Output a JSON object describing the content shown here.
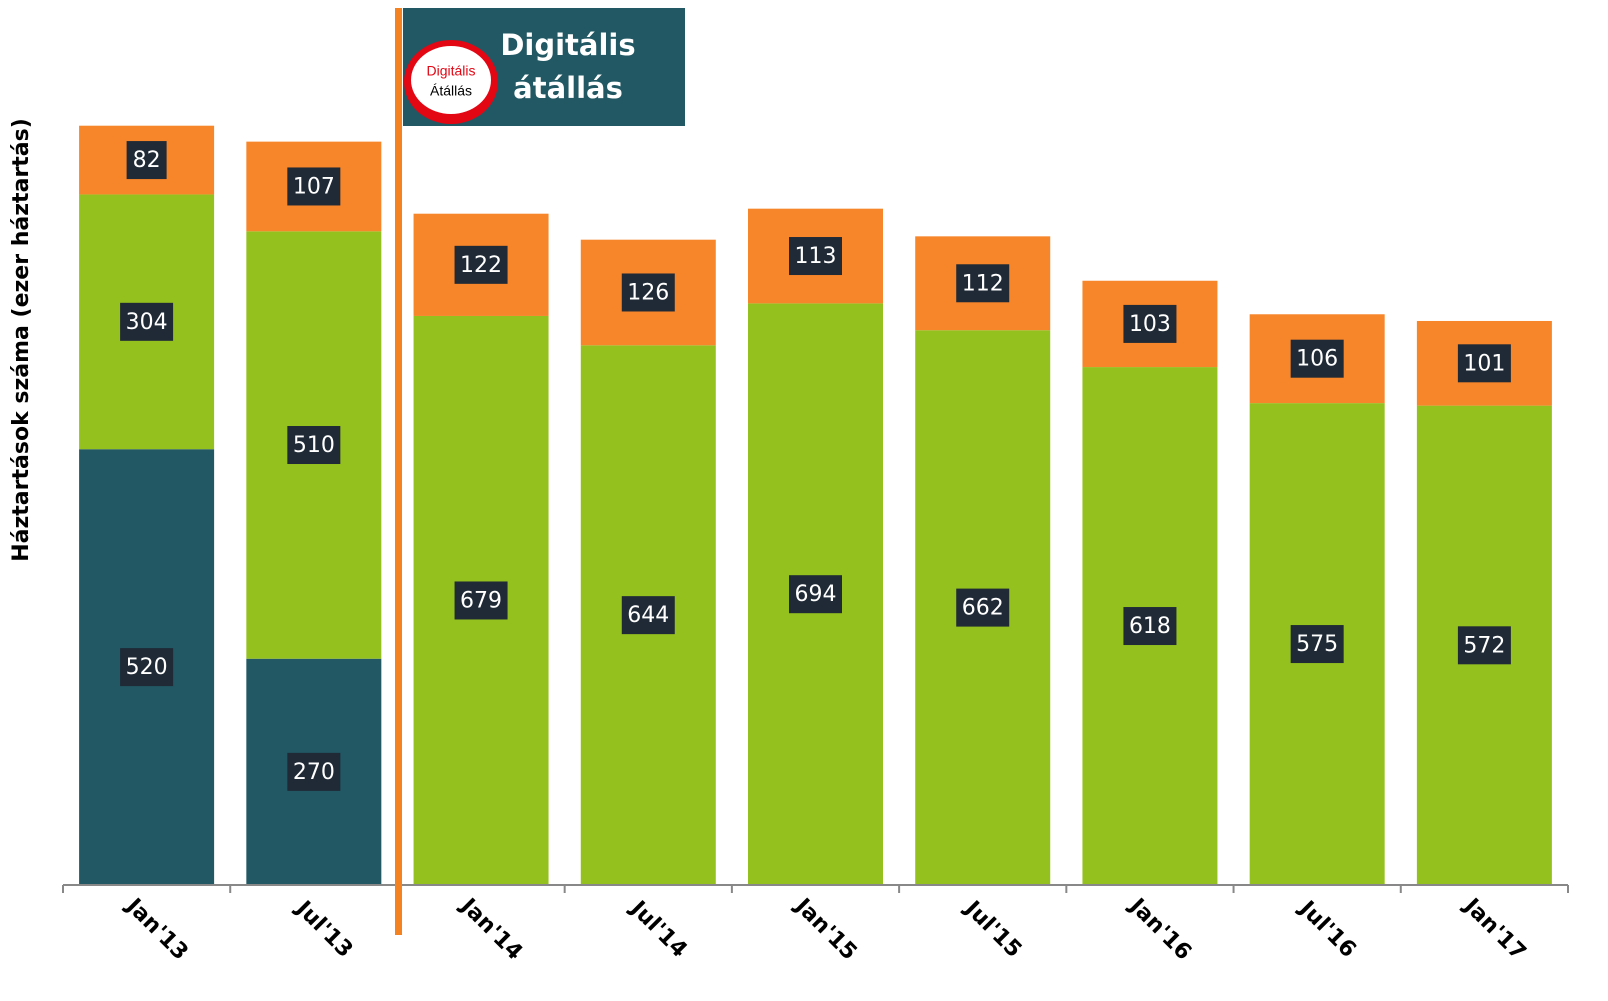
{
  "chart_data": {
    "type": "bar",
    "stacked": true,
    "ylabel": "Háztartások száma (ezer háztartás)",
    "categories": [
      "Jan'13",
      "Jul'13",
      "Jan'14",
      "Jul'14",
      "Jan'15",
      "Jul'15",
      "Jan'16",
      "Jul'16",
      "Jan'17"
    ],
    "series": [
      {
        "color": "#215863",
        "values": [
          520,
          270,
          null,
          null,
          null,
          null,
          null,
          null,
          null
        ]
      },
      {
        "color": "#95c11f",
        "values": [
          304,
          510,
          679,
          644,
          694,
          662,
          618,
          575,
          572
        ]
      },
      {
        "color": "#f7852a",
        "values": [
          82,
          107,
          122,
          126,
          113,
          112,
          103,
          106,
          101
        ]
      }
    ],
    "ylim": [
      0,
      1056
    ],
    "annotation": {
      "text": [
        "Digitális",
        "átállás"
      ],
      "logo": [
        "Digitális",
        "Átállás"
      ],
      "color": "#215863",
      "line_color": "#f58220"
    }
  }
}
